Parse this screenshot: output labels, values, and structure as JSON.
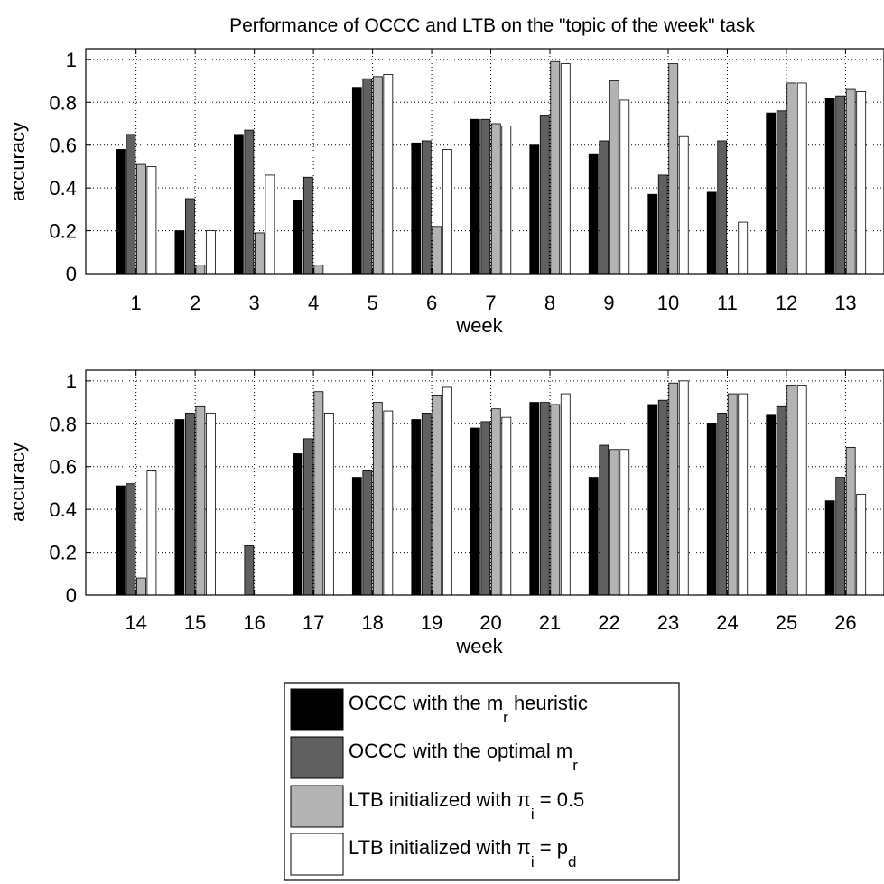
{
  "chart_data": {
    "title": "Performance of OCCC and LTB on the \"topic of the week\" task",
    "type": "bar",
    "series": [
      {
        "name": "OCCC with the m_r heuristic",
        "legend": {
          "pre": "OCCC with the m",
          "sub": "r",
          "post": " heuristic"
        },
        "color": "#000000"
      },
      {
        "name": "OCCC with the optimal m_r",
        "legend": {
          "pre": "OCCC with the optimal m",
          "sub": "r",
          "post": ""
        },
        "color": "#606060"
      },
      {
        "name": "LTB initialized with π_i = 0.5",
        "legend": {
          "pre": "LTB initialized with π",
          "sub": "i",
          "post": " = 0.5"
        },
        "color": "#b3b3b3"
      },
      {
        "name": "LTB initialized with π_i = p_d",
        "legend": {
          "pre": "LTB initialized with π",
          "sub": "i",
          "post": " = p",
          "sub2": "d"
        },
        "color": "#ffffff"
      }
    ],
    "panels": [
      {
        "xlabel": "week",
        "ylabel": "accuracy",
        "ylim": [
          0,
          1.05
        ],
        "yticks": [
          "0",
          "0.2",
          "0.4",
          "0.6",
          "0.8",
          "1"
        ],
        "categories": [
          "1",
          "2",
          "3",
          "4",
          "5",
          "6",
          "7",
          "8",
          "9",
          "10",
          "11",
          "12",
          "13"
        ],
        "values": [
          [
            0.58,
            0.65,
            0.51,
            0.5
          ],
          [
            0.2,
            0.35,
            0.04,
            0.2
          ],
          [
            0.65,
            0.67,
            0.19,
            0.46
          ],
          [
            0.34,
            0.45,
            0.04,
            0.0
          ],
          [
            0.87,
            0.91,
            0.92,
            0.93
          ],
          [
            0.61,
            0.62,
            0.22,
            0.58
          ],
          [
            0.72,
            0.72,
            0.7,
            0.69
          ],
          [
            0.6,
            0.74,
            0.99,
            0.98
          ],
          [
            0.56,
            0.62,
            0.9,
            0.81
          ],
          [
            0.37,
            0.46,
            0.98,
            0.64
          ],
          [
            0.38,
            0.62,
            0.0,
            0.24
          ],
          [
            0.75,
            0.76,
            0.89,
            0.89
          ],
          [
            0.82,
            0.83,
            0.86,
            0.85
          ]
        ]
      },
      {
        "xlabel": "week",
        "ylabel": "accuracy",
        "ylim": [
          0,
          1.05
        ],
        "yticks": [
          "0",
          "0.2",
          "0.4",
          "0.6",
          "0.8",
          "1"
        ],
        "categories": [
          "14",
          "15",
          "16",
          "17",
          "18",
          "19",
          "20",
          "21",
          "22",
          "23",
          "24",
          "25",
          "26"
        ],
        "values": [
          [
            0.51,
            0.52,
            0.08,
            0.58
          ],
          [
            0.82,
            0.85,
            0.88,
            0.85
          ],
          [
            0.0,
            0.23,
            0.0,
            0.0
          ],
          [
            0.66,
            0.73,
            0.95,
            0.85
          ],
          [
            0.55,
            0.58,
            0.9,
            0.86
          ],
          [
            0.82,
            0.85,
            0.93,
            0.97
          ],
          [
            0.78,
            0.81,
            0.87,
            0.83
          ],
          [
            0.9,
            0.9,
            0.89,
            0.94
          ],
          [
            0.55,
            0.7,
            0.68,
            0.68
          ],
          [
            0.89,
            0.91,
            0.99,
            1.0
          ],
          [
            0.8,
            0.85,
            0.94,
            0.94
          ],
          [
            0.84,
            0.88,
            0.98,
            0.98
          ],
          [
            0.44,
            0.55,
            0.69,
            0.47
          ]
        ]
      }
    ],
    "grid": true,
    "legend_position": "bottom-center"
  }
}
